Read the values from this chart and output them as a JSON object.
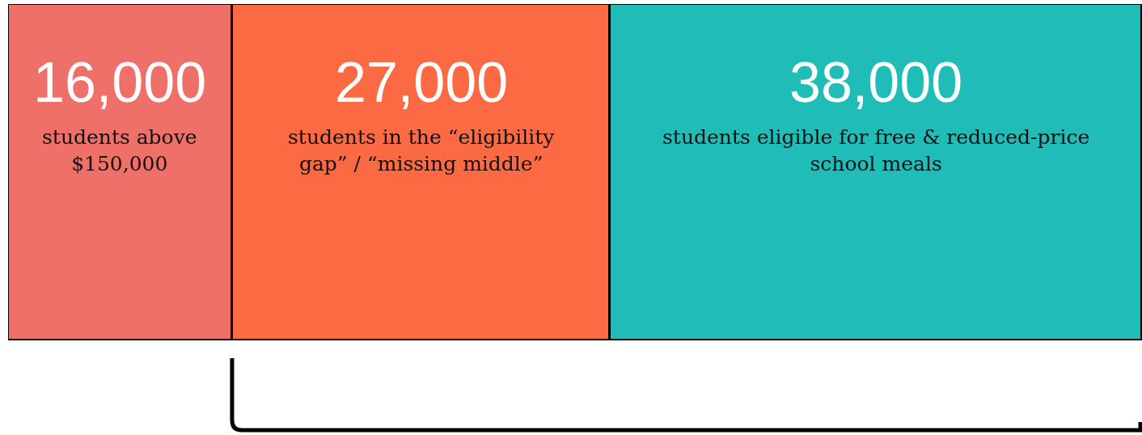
{
  "chart_data": {
    "type": "bar",
    "orientation": "horizontal",
    "stacked": true,
    "categories": [
      null
    ],
    "series": [
      {
        "name": "students above $150,000",
        "color": "#ee7068",
        "values": [
          16000
        ],
        "value_labels": [
          "16,000"
        ]
      },
      {
        "name": "students in the “eligibility gap” / “missing middle”",
        "color": "#fb6a43",
        "values": [
          27000
        ],
        "value_labels": [
          "27,000"
        ]
      },
      {
        "name": "students eligible for free & reduced-price school meals",
        "color": "#20bdb8",
        "values": [
          38000
        ],
        "value_labels": [
          "38,000"
        ]
      }
    ],
    "legend": false
  }
}
